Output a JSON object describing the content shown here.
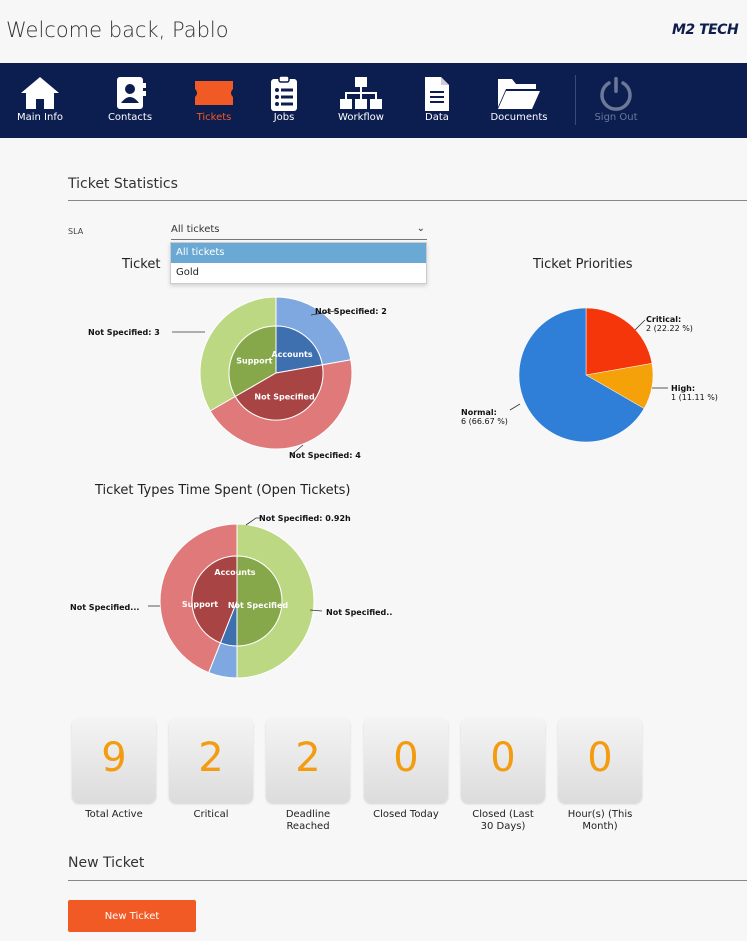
{
  "header": {
    "welcome": "Welcome back, Pablo",
    "logo_m2": "M2",
    "logo_tech": "TECH"
  },
  "nav": {
    "items": [
      {
        "label": "Main Info",
        "icon": "home-icon"
      },
      {
        "label": "Contacts",
        "icon": "contacts-icon"
      },
      {
        "label": "Tickets",
        "icon": "ticket-icon"
      },
      {
        "label": "Jobs",
        "icon": "clipboard-icon"
      },
      {
        "label": "Workflow",
        "icon": "workflow-icon"
      },
      {
        "label": "Data",
        "icon": "document-icon"
      },
      {
        "label": "Documents",
        "icon": "folder-icon"
      },
      {
        "label": "Sign Out",
        "icon": "power-icon"
      }
    ],
    "active": "Tickets",
    "colors": {
      "bar": "#0c1d4f",
      "active": "#f15a24"
    }
  },
  "stats": {
    "title": "Ticket Statistics",
    "sla_label": "SLA",
    "sla_value": "All tickets",
    "sla_options": [
      "All tickets",
      "Gold"
    ]
  },
  "chart_data": [
    {
      "type": "pie",
      "title": "Ticket Types",
      "title_visible": "Ticket",
      "inner": [
        {
          "label": "Support",
          "value": 3
        },
        {
          "label": "Accounts",
          "value": 2
        },
        {
          "label": "Not Specified",
          "value": 4
        }
      ],
      "outer": [
        {
          "label": "Not Specified: 3",
          "value": 3
        },
        {
          "label": "Not Specified: 2",
          "value": 2
        },
        {
          "label": "Not Specified: 4",
          "value": 4
        }
      ]
    },
    {
      "type": "pie",
      "title": "Ticket Priorities",
      "slices": [
        {
          "label": "Critical:",
          "sub": "2 (22.22 %)",
          "value": 2,
          "color": "#f5360a"
        },
        {
          "label": "High:",
          "sub": "1 (11.11 %)",
          "value": 1,
          "color": "#f5a10a"
        },
        {
          "label": "Normal:",
          "sub": "6 (66.67 %)",
          "value": 6,
          "color": "#2f7fd8"
        }
      ]
    },
    {
      "type": "pie",
      "title": "Ticket Types Time Spent (Open Tickets)",
      "inner": [
        {
          "label": "Support",
          "value": 50
        },
        {
          "label": "Accounts",
          "value": 6
        },
        {
          "label": "Not Specified",
          "value": 44
        }
      ],
      "outer": [
        {
          "label": "Not Specified...",
          "value": 50
        },
        {
          "label": "Not Specified: 0.92h",
          "value": 6
        },
        {
          "label": "Not Specified..",
          "value": 44
        }
      ]
    }
  ],
  "tiles": [
    {
      "value": "9",
      "label": "Total Active"
    },
    {
      "value": "2",
      "label": "Critical"
    },
    {
      "value": "2",
      "label": "Deadline Reached"
    },
    {
      "value": "0",
      "label": "Closed Today"
    },
    {
      "value": "0",
      "label": "Closed (Last 30 Days)"
    },
    {
      "value": "0",
      "label": "Hour(s) (This Month)"
    }
  ],
  "new_ticket": {
    "title": "New Ticket",
    "button": "New Ticket"
  }
}
